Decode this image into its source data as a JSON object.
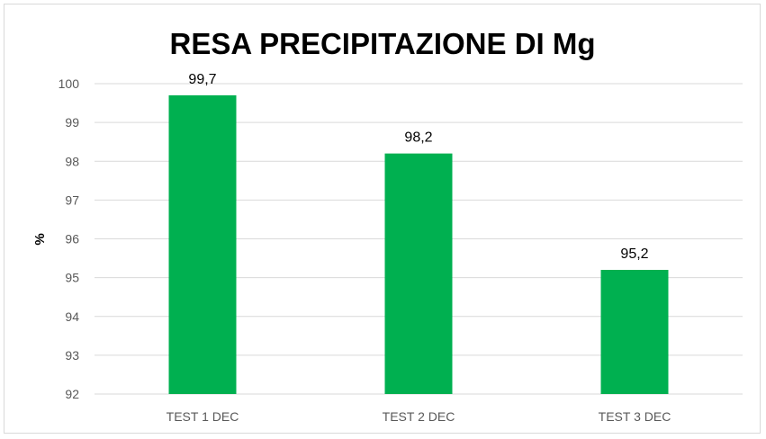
{
  "chart_data": {
    "type": "bar",
    "title": "RESA PRECIPITAZIONE DI Mg",
    "xlabel": "",
    "ylabel": "%",
    "categories": [
      "TEST 1 DEC",
      "TEST 2 DEC",
      "TEST 3 DEC"
    ],
    "values": [
      99.7,
      98.2,
      95.2
    ],
    "data_labels": [
      "99,7",
      "98,2",
      "95,2"
    ],
    "ylim": [
      92,
      100
    ],
    "yticks": [
      92,
      93,
      94,
      95,
      96,
      97,
      98,
      99,
      100
    ],
    "grid": true,
    "legend": "none",
    "bar_color": "#00b050",
    "grid_color": "#d9d9d9"
  }
}
